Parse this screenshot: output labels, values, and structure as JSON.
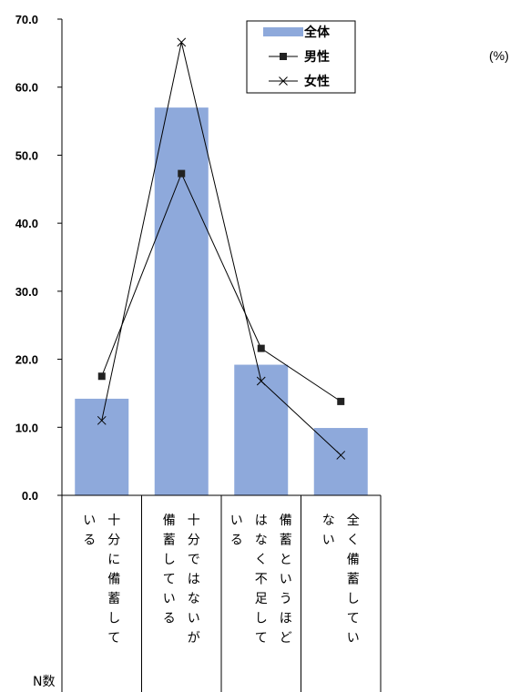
{
  "chart_data": {
    "type": "bar",
    "categories": [
      "十分に備蓄している",
      "十分ではないが備蓄している",
      "備蓄というほどはなく不足している",
      "全く備蓄していない"
    ],
    "category_lines": [
      [
        "十分に備蓄して",
        "いる"
      ],
      [
        "十分ではないが",
        "備蓄している"
      ],
      [
        "備蓄というほど",
        "はなく不足して",
        "いる"
      ],
      [
        "全く備蓄してい",
        "ない"
      ]
    ],
    "series": [
      {
        "name": "全体",
        "type": "bar",
        "values": [
          14.2,
          57.0,
          19.2,
          9.9
        ],
        "color": "#8EA9DB"
      },
      {
        "name": "男性",
        "type": "line",
        "marker": "square",
        "values": [
          17.5,
          47.3,
          21.6,
          13.8
        ],
        "color": "#000000"
      },
      {
        "name": "女性",
        "type": "line",
        "marker": "x",
        "values": [
          11.0,
          66.6,
          16.8,
          5.9
        ],
        "color": "#000000"
      }
    ],
    "ylim": [
      0,
      70
    ],
    "yticks": [
      "0.0",
      "10.0",
      "20.0",
      "30.0",
      "40.0",
      "50.0",
      "60.0",
      "70.0"
    ],
    "unit_label": "(%)",
    "n_label": "N数",
    "legend_position": "top-right",
    "grid": false
  }
}
